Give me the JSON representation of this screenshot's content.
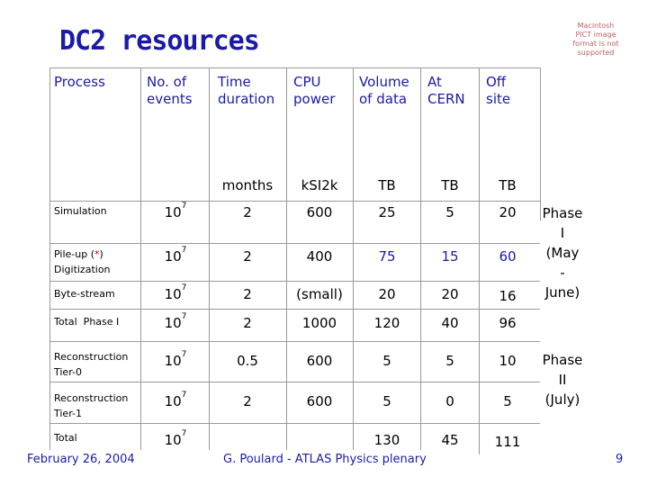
{
  "title": "DC2 resources",
  "pict_notice": "Macintosh PICT image format is not supported",
  "headers": {
    "process": "Process",
    "events": "No. of events",
    "time": "Time duration",
    "cpu": "CPU power",
    "volume": "Volume of data",
    "cern": "At CERN",
    "offsite": "Off site"
  },
  "units": {
    "time": "months",
    "cpu": "kSI2k",
    "volume": "TB",
    "cern": "TB",
    "offsite": "TB"
  },
  "rows": [
    {
      "label1": "Simulation",
      "label2": "",
      "events_base": "10",
      "events_exp": "7",
      "time": "2",
      "cpu": "600",
      "volume": "25",
      "cern": "5",
      "offsite": "20"
    },
    {
      "label1": "Pile-up (",
      "label_star": "*",
      "label1b": ")",
      "label2": "Digitization",
      "events_base": "10",
      "events_exp": "7",
      "time": "2",
      "cpu": "400",
      "volume": "75",
      "cern": "15",
      "offsite": "60"
    },
    {
      "label1": "Byte-stream",
      "label2": "",
      "events_base": "10",
      "events_exp": "7",
      "time": "2",
      "cpu": "(small)",
      "volume": "20",
      "cern": "20",
      "offsite": "16"
    },
    {
      "label1": "Total  Phase I",
      "label2": "",
      "events_base": "10",
      "events_exp": "7",
      "time": "2",
      "cpu": "1000",
      "volume": "120",
      "cern": "40",
      "offsite": "96"
    },
    {
      "label1": "Reconstruction",
      "label2": "Tier-0",
      "events_base": "10",
      "events_exp": "7",
      "time": "0.5",
      "cpu": "600",
      "volume": "5",
      "cern": "5",
      "offsite": "10"
    },
    {
      "label1": "Reconstruction",
      "label2": "Tier-1",
      "events_base": "10",
      "events_exp": "7",
      "time": "2",
      "cpu": "600",
      "volume": "5",
      "cern": "0",
      "offsite": "5"
    },
    {
      "label1": "Total",
      "label2": "",
      "events_base": "10",
      "events_exp": "7",
      "time": "",
      "cpu": "",
      "volume": "130",
      "cern": "45",
      "offsite": "111"
    }
  ],
  "phase1": [
    "Phase",
    "I",
    "(May",
    "-",
    "June)"
  ],
  "phase2": [
    "Phase",
    "II",
    "(July)"
  ],
  "footer": {
    "date": "February 26, 2004",
    "presenter": "G. Poulard - ATLAS Physics plenary",
    "page": "9"
  }
}
